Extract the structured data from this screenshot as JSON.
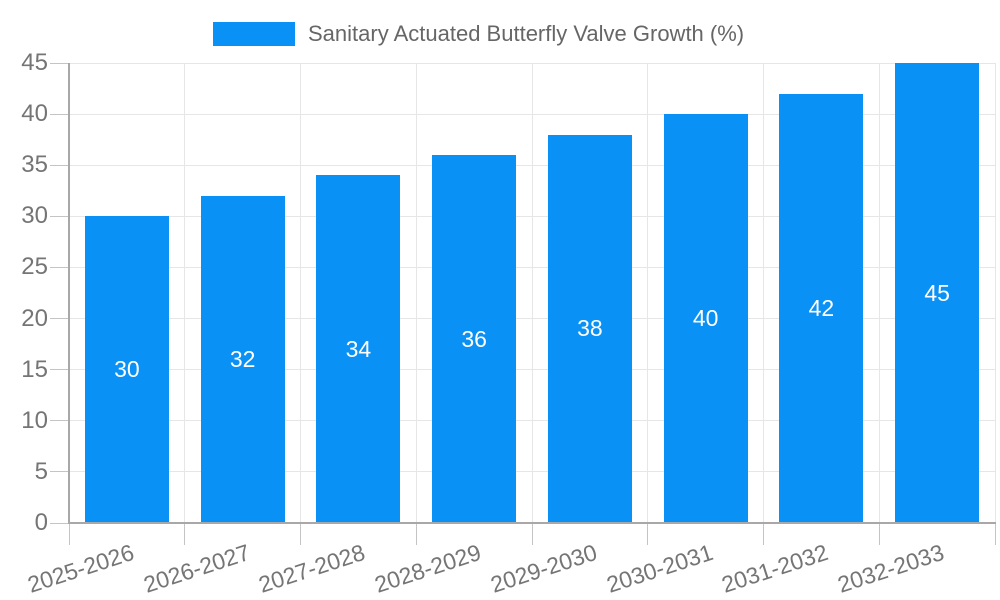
{
  "chart_data": {
    "type": "bar",
    "title": "",
    "legend_label": "Sanitary Actuated Butterfly Valve Growth (%)",
    "legend_position": "top",
    "categories": [
      "2025-2026",
      "2026-2027",
      "2027-2028",
      "2028-2029",
      "2029-2030",
      "2030-2031",
      "2031-2032",
      "2032-2033"
    ],
    "values": [
      30,
      32,
      34,
      36,
      38,
      40,
      42,
      45
    ],
    "bar_value_labels": [
      "30",
      "32",
      "34",
      "36",
      "38",
      "40",
      "42",
      "45"
    ],
    "xlabel": "",
    "ylabel": "",
    "ylim": [
      0,
      45
    ],
    "yticks": [
      0,
      5,
      10,
      15,
      20,
      25,
      30,
      35,
      40,
      45
    ],
    "grid": true,
    "value_labels_inside_bars": true,
    "colors": {
      "background": "#ffffff",
      "bar": "#0a91f5",
      "bar_label": "#ffffff",
      "grid": "#e6e6e6",
      "tick": "#c4c4c4",
      "axis": "#a8a8a8",
      "tick_text": "#757575",
      "legend_text": "#666666"
    }
  }
}
